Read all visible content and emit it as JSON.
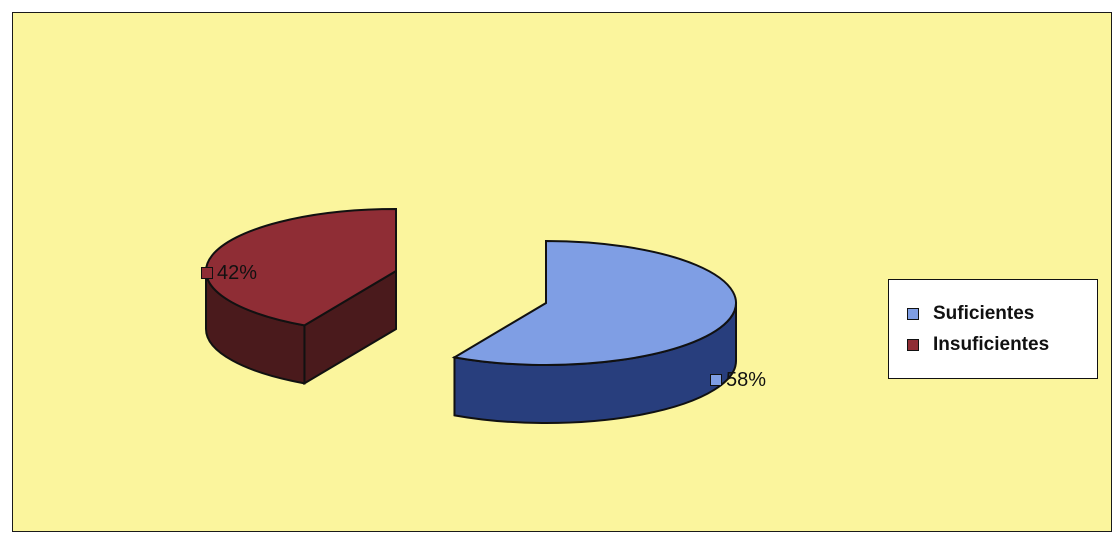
{
  "chart_data": {
    "type": "pie",
    "title": "",
    "categories": [
      "Suficientes",
      "Insuficientes"
    ],
    "values": [
      58,
      42
    ],
    "labels": [
      "58%",
      "42%"
    ],
    "colors": {
      "Suficientes": {
        "top": "#7f9ee4",
        "side": "#283e7d"
      },
      "Insuficientes": {
        "top": "#8f2d35",
        "side": "#4a1a1c"
      }
    },
    "background": "#fbf59d",
    "legend_position": "right",
    "style": "3d-exploded"
  }
}
